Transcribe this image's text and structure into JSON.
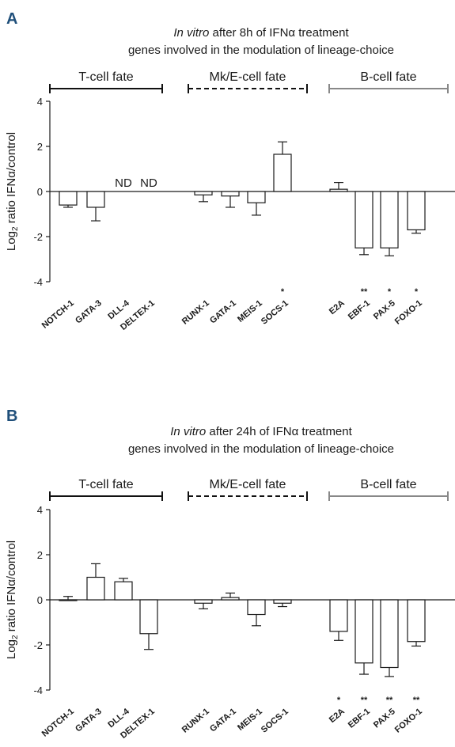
{
  "chart_data": [
    {
      "type": "bar",
      "panel": "A",
      "title_italic": "In vitro",
      "title_rest": " after 8h of IFNα treatment",
      "subtitle": "genes involved in the modulation of lineage-choice",
      "ylabel_main": "Log",
      "ylabel_sub": "2",
      "ylabel_rest": " ratio IFNα/control",
      "ylim": [
        -4,
        4
      ],
      "yticks": [
        "4",
        "2",
        "0",
        "-2",
        "-4"
      ],
      "groups": [
        {
          "label": "T-cell fate",
          "style": "solid-black",
          "color": "#111111"
        },
        {
          "label": "Mk/E-cell fate",
          "style": "dashed-black",
          "color": "#111111"
        },
        {
          "label": "B-cell fate",
          "style": "solid-gray",
          "color": "#888888"
        }
      ],
      "categories": [
        "NOTCH-1",
        "GATA-3",
        "DLL-4",
        "DELTEX-1",
        "RUNX-1",
        "GATA-1",
        "MEIS-1",
        "SOCS-1",
        "E2A",
        "EBF-1",
        "PAX-5",
        "FOXO-1"
      ],
      "values": [
        -0.6,
        -0.7,
        null,
        null,
        -0.15,
        -0.2,
        -0.5,
        1.65,
        0.1,
        -2.5,
        -2.5,
        -1.7
      ],
      "errors": [
        0.1,
        0.6,
        null,
        null,
        0.3,
        0.5,
        0.55,
        0.55,
        0.3,
        0.3,
        0.35,
        0.15
      ],
      "annotations": [
        "",
        "",
        "ND",
        "ND",
        "",
        "",
        "",
        "*",
        "",
        "**",
        "*",
        "*"
      ]
    },
    {
      "type": "bar",
      "panel": "B",
      "title_italic": "In vitro",
      "title_rest": " after 24h of IFNα treatment",
      "subtitle": "genes involved in the modulation of lineage-choice",
      "ylabel_main": "Log",
      "ylabel_sub": "2",
      "ylabel_rest": " ratio IFNα/control",
      "ylim": [
        -4,
        4
      ],
      "yticks": [
        "4",
        "2",
        "0",
        "-2",
        "-4"
      ],
      "groups": [
        {
          "label": "T-cell fate",
          "style": "solid-black",
          "color": "#111111"
        },
        {
          "label": "Mk/E-cell fate",
          "style": "dashed-black",
          "color": "#111111"
        },
        {
          "label": "B-cell fate",
          "style": "solid-gray",
          "color": "#888888"
        }
      ],
      "categories": [
        "NOTCH-1",
        "GATA-3",
        "DLL-4",
        "DELTEX-1",
        "RUNX-1",
        "GATA-1",
        "MEIS-1",
        "SOCS-1",
        "E2A",
        "EBF-1",
        "PAX-5",
        "FOXO-1"
      ],
      "values": [
        0.0,
        1.0,
        0.8,
        -1.5,
        -0.15,
        0.1,
        -0.65,
        -0.15,
        -1.4,
        -2.8,
        -3.0,
        -1.85
      ],
      "errors": [
        0.15,
        0.6,
        0.15,
        0.7,
        0.25,
        0.2,
        0.5,
        0.15,
        0.4,
        0.5,
        0.4,
        0.2
      ],
      "annotations": [
        "",
        "",
        "",
        "",
        "",
        "",
        "",
        "",
        "*",
        "**",
        "**",
        "**"
      ]
    }
  ]
}
